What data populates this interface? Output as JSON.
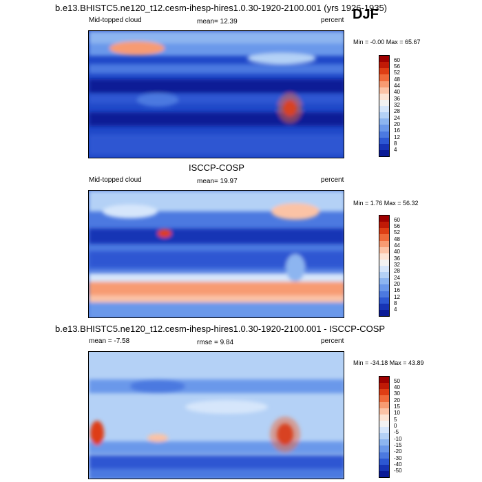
{
  "season": "DJF",
  "panels": [
    {
      "title": "b.e13.BHISTC5.ne120_t12.cesm-ihesp-hires1.0.30-1920-2100.001 (yrs 1926-1935)",
      "left_label": "Mid-topped cloud",
      "center_label": "mean=  12.39",
      "right_label": "percent",
      "minmax_label": "Min =  -0.00 Max =  65.67",
      "colorbar_labels": [
        "60",
        "56",
        "52",
        "48",
        "44",
        "40",
        "36",
        "32",
        "28",
        "24",
        "20",
        "16",
        "12",
        "8",
        "4"
      ],
      "colors": [
        "#9e0000",
        "#c01a06",
        "#de3e14",
        "#ef6a3a",
        "#f79b72",
        "#fbc3a6",
        "#fde4d4",
        "#f2f2f2",
        "#d6e6fb",
        "#b4d1f6",
        "#8db5f0",
        "#6b98ea",
        "#4c79e0",
        "#2d57d2",
        "#1734b5",
        "#0a1a96"
      ]
    },
    {
      "title": "ISCCP-COSP",
      "left_label": "Mid-topped cloud",
      "center_label": "mean=  19.97",
      "right_label": "percent",
      "minmax_label": "Min =   1.76 Max =  56.32",
      "colorbar_labels": [
        "60",
        "56",
        "52",
        "48",
        "44",
        "40",
        "36",
        "32",
        "28",
        "24",
        "20",
        "16",
        "12",
        "8",
        "4"
      ],
      "colors": [
        "#9e0000",
        "#c01a06",
        "#de3e14",
        "#ef6a3a",
        "#f79b72",
        "#fbc3a6",
        "#fde4d4",
        "#f2f2f2",
        "#d6e6fb",
        "#b4d1f6",
        "#8db5f0",
        "#6b98ea",
        "#4c79e0",
        "#2d57d2",
        "#1734b5",
        "#0a1a96"
      ]
    },
    {
      "title": "b.e13.BHISTC5.ne120_t12.cesm-ihesp-hires1.0.30-1920-2100.001 - ISCCP-COSP",
      "left_label": "mean =  -7.58",
      "center_label": "rmse =   9.84",
      "right_label": "percent",
      "minmax_label": "Min = -34.18 Max =  43.89",
      "colorbar_labels": [
        "50",
        "40",
        "30",
        "20",
        "15",
        "10",
        "5",
        "0",
        "-5",
        "-10",
        "-15",
        "-20",
        "-30",
        "-40",
        "-50"
      ],
      "colors": [
        "#9e0000",
        "#c01a06",
        "#de3e14",
        "#ef6a3a",
        "#f79b72",
        "#fbc3a6",
        "#fde4d4",
        "#f2f2f2",
        "#d6e6fb",
        "#b4d1f6",
        "#8db5f0",
        "#6b98ea",
        "#4c79e0",
        "#2d57d2",
        "#1734b5",
        "#0a1a96"
      ]
    }
  ],
  "chart_data": [
    {
      "type": "heatmap",
      "title": "b.e13.BHISTC5.ne120_t12.cesm-ihesp-hires1.0.30-1920-2100.001 (yrs 1926-1935)",
      "variable": "Mid-topped cloud",
      "units": "percent",
      "season": "DJF",
      "mean": 12.39,
      "min": -0.0,
      "max": 65.67,
      "levels": [
        4,
        8,
        12,
        16,
        20,
        24,
        28,
        32,
        36,
        40,
        44,
        48,
        52,
        56,
        60
      ]
    },
    {
      "type": "heatmap",
      "title": "ISCCP-COSP",
      "variable": "Mid-topped cloud",
      "units": "percent",
      "season": "DJF",
      "mean": 19.97,
      "min": 1.76,
      "max": 56.32,
      "levels": [
        4,
        8,
        12,
        16,
        20,
        24,
        28,
        32,
        36,
        40,
        44,
        48,
        52,
        56,
        60
      ]
    },
    {
      "type": "heatmap",
      "title": "b.e13.BHISTC5.ne120_t12.cesm-ihesp-hires1.0.30-1920-2100.001 - ISCCP-COSP",
      "units": "percent",
      "season": "DJF",
      "mean": -7.58,
      "rmse": 9.84,
      "min": -34.18,
      "max": 43.89,
      "levels": [
        -50,
        -40,
        -30,
        -20,
        -15,
        -10,
        -5,
        0,
        5,
        10,
        15,
        20,
        30,
        40,
        50
      ]
    }
  ]
}
